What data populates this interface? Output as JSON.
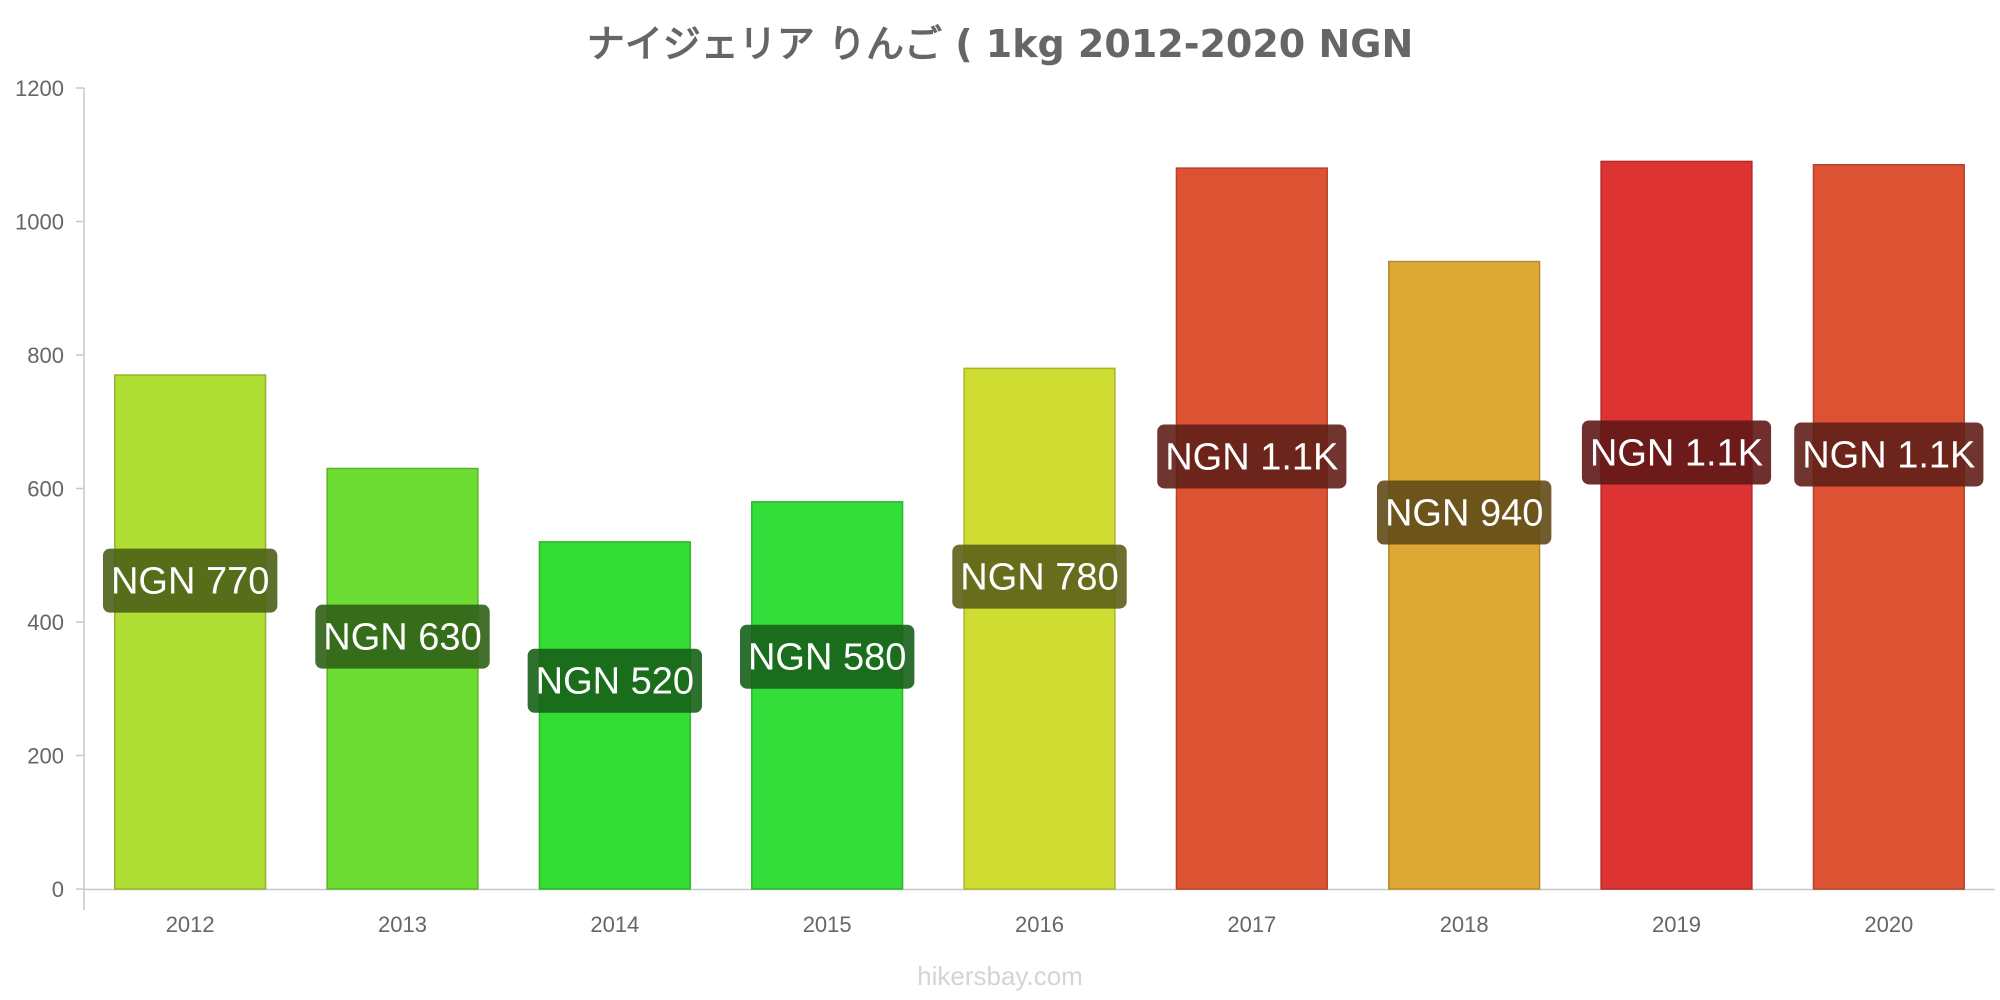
{
  "chart_data": {
    "type": "bar",
    "title": "ナイジェリア りんご ( 1kg 2012-2020 NGN",
    "categories": [
      "2012",
      "2013",
      "2014",
      "2015",
      "2016",
      "2017",
      "2018",
      "2019",
      "2020"
    ],
    "values": [
      770,
      630,
      520,
      580,
      780,
      1080,
      940,
      1090,
      1085
    ],
    "data_labels": [
      "NGN 770",
      "NGN 630",
      "NGN 520",
      "NGN 580",
      "NGN 780",
      "NGN 1.1K",
      "NGN 940",
      "NGN 1.1K",
      "NGN 1.1K"
    ],
    "bar_colors": [
      "#afdd33",
      "#6ddd33",
      "#33dd33",
      "#33dd3a",
      "#cfdd33",
      "#dd5233",
      "#dda833",
      "#dd3333",
      "#dd5233"
    ],
    "label_box_colors": [
      "#4c6117",
      "#306117",
      "#176117",
      "#176119",
      "#5b6117",
      "#611f17",
      "#614a17",
      "#611717",
      "#611f17"
    ],
    "yticks": [
      0,
      200,
      400,
      600,
      800,
      1000,
      1200
    ],
    "ylim": [
      0,
      1200
    ],
    "xlabel": "",
    "ylabel": "",
    "grid": false,
    "legend": "none"
  },
  "footer": {
    "source": "hikersbay.com"
  }
}
